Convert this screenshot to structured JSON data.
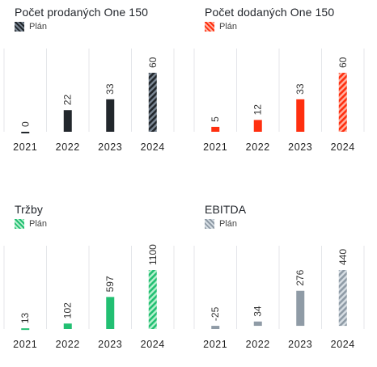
{
  "chart_data": [
    {
      "type": "bar",
      "title": "Počet prodaných One 150",
      "legend": "Plán",
      "color": "#22272c",
      "plan_stripe": "#7b8794",
      "categories": [
        "2021",
        "2022",
        "2023",
        "2024"
      ],
      "values": [
        0,
        22,
        33,
        60
      ],
      "value_labels": [
        "0",
        "22",
        "33",
        "60"
      ],
      "plan": [
        false,
        false,
        false,
        true
      ],
      "ylim": [
        0,
        60
      ]
    },
    {
      "type": "bar",
      "title": "Počet dodaných One 150",
      "legend": "Plán",
      "color": "#ff2f0f",
      "plan_stripe": "#ffb3a3",
      "categories": [
        "2021",
        "2022",
        "2023",
        "2024"
      ],
      "values": [
        5,
        12,
        33,
        60
      ],
      "value_labels": [
        "5",
        "12",
        "33",
        "60"
      ],
      "plan": [
        false,
        false,
        false,
        true
      ],
      "ylim": [
        0,
        60
      ]
    },
    {
      "type": "bar",
      "title": "Tržby",
      "legend": "Plán",
      "color": "#22bf72",
      "plan_stripe": "#b8f0cf",
      "categories": [
        "2021",
        "2022",
        "2023",
        "2024"
      ],
      "values": [
        13,
        102,
        597,
        1100
      ],
      "value_labels": [
        "13",
        "102",
        "597",
        "1100"
      ],
      "plan": [
        false,
        false,
        false,
        true
      ],
      "ylim": [
        0,
        1100
      ]
    },
    {
      "type": "bar",
      "title": "EBITDA",
      "legend": "Plán",
      "color": "#8f9ba6",
      "plan_stripe": "#d7dee4",
      "categories": [
        "2021",
        "2022",
        "2023",
        "2024"
      ],
      "values": [
        -25,
        34,
        276,
        440
      ],
      "value_labels": [
        "-25",
        "34",
        "276",
        "440"
      ],
      "plan": [
        false,
        false,
        false,
        true
      ],
      "ylim": [
        -25,
        440
      ]
    }
  ]
}
